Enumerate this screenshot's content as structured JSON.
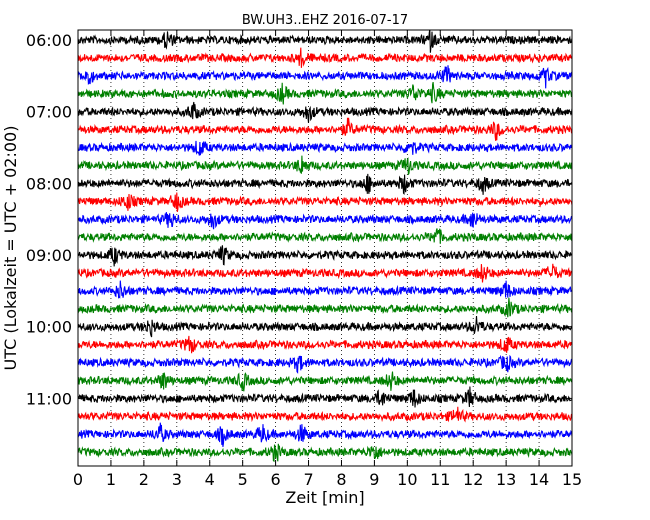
{
  "chart_data": {
    "type": "line",
    "title": "BW.UH3..EHZ 2016-07-17",
    "xlabel": "Zeit  [min]",
    "ylabel": "UTC (Lokalzeit = UTC + 02:00)",
    "xlim": [
      0,
      15
    ],
    "x_ticks": [
      "0",
      "1",
      "2",
      "3",
      "4",
      "5",
      "6",
      "7",
      "8",
      "9",
      "10",
      "11",
      "12",
      "13",
      "14",
      "15"
    ],
    "y_ticks": [
      "06:00",
      "07:00",
      "08:00",
      "09:00",
      "10:00",
      "11:00"
    ],
    "trace_interval_minutes": 15,
    "first_trace": "06:00",
    "trace_colors": [
      "#000000",
      "#ff0000",
      "#0000ff",
      "#008000"
    ],
    "grid": "dotted vertical lines at each minute",
    "series": [
      {
        "start": "06:00",
        "events": [
          2.7,
          10.7
        ]
      },
      {
        "start": "06:15",
        "events": [
          6.8
        ]
      },
      {
        "start": "06:30",
        "events": [
          0.3,
          11.2,
          14.2
        ]
      },
      {
        "start": "06:45",
        "events": [
          6.2,
          10.2,
          10.8
        ]
      },
      {
        "start": "07:00",
        "events": [
          3.5,
          7.0
        ]
      },
      {
        "start": "07:15",
        "events": [
          8.2,
          12.7
        ]
      },
      {
        "start": "07:30",
        "events": [
          3.7,
          10.1
        ]
      },
      {
        "start": "07:45",
        "events": [
          6.8,
          10.0
        ]
      },
      {
        "start": "08:00",
        "events": [
          8.8,
          9.9,
          12.3
        ]
      },
      {
        "start": "08:15",
        "events": [
          1.5,
          3.0
        ]
      },
      {
        "start": "08:30",
        "events": [
          2.8,
          4.1,
          12.0
        ]
      },
      {
        "start": "08:45",
        "events": [
          10.9
        ]
      },
      {
        "start": "09:00",
        "events": [
          1.1,
          4.4
        ]
      },
      {
        "start": "09:15",
        "events": [
          12.3,
          14.4
        ]
      },
      {
        "start": "09:30",
        "events": [
          1.3,
          13.0
        ]
      },
      {
        "start": "09:45",
        "events": [
          13.1
        ]
      },
      {
        "start": "10:00",
        "events": [
          2.2,
          12.1
        ]
      },
      {
        "start": "10:15",
        "events": [
          3.4,
          13.0
        ]
      },
      {
        "start": "10:30",
        "events": [
          6.7,
          13.0
        ]
      },
      {
        "start": "10:45",
        "events": [
          2.6,
          5.0,
          9.5
        ]
      },
      {
        "start": "11:00",
        "events": [
          9.2,
          10.2,
          11.9
        ]
      },
      {
        "start": "11:15",
        "events": [
          11.5
        ]
      },
      {
        "start": "11:30",
        "events": [
          2.5,
          4.4,
          5.6,
          6.8
        ]
      },
      {
        "start": "11:45",
        "events": [
          6.0,
          9.0
        ]
      }
    ]
  }
}
